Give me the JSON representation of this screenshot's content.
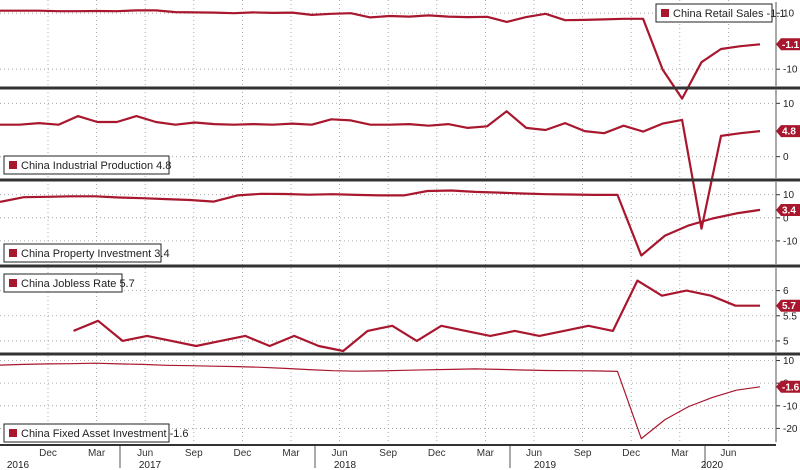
{
  "chart_data": {
    "type": "line",
    "color": "#a8172e",
    "months": [
      "Dec",
      "Mar",
      "Jun",
      "Sep",
      "Dec",
      "Mar",
      "Jun",
      "Sep",
      "Dec",
      "Mar",
      "Jun",
      "Sep",
      "Dec",
      "Mar",
      "Jun"
    ],
    "years": [
      "2016",
      "2017",
      "2018",
      "2019",
      "2020"
    ],
    "panels": [
      {
        "legend": "China Retail Sales -1.1",
        "badge": "-1.1",
        "last": -1.1,
        "ylim": [
          -16,
          14
        ],
        "ticks": [
          10,
          -10
        ],
        "values": [
          10.9,
          10.9,
          10.9,
          10.7,
          10.7,
          10.8,
          10.7,
          11.0,
          11.0,
          10.4,
          10.3,
          10.2,
          10.0,
          10.3,
          10.1,
          10.2,
          9.4,
          9.8,
          10.0,
          8.5,
          9.0,
          8.8,
          9.2,
          8.8,
          8.6,
          8.7,
          6.9,
          8.6,
          9.8,
          7.5,
          7.6,
          7.8,
          8.0,
          8.0,
          -10.1,
          -20.5,
          -7.5,
          -2.8,
          -1.8,
          -1.1
        ]
      },
      {
        "legend": "China Industrial Production 4.8",
        "badge": "4.8",
        "last": 4.8,
        "ylim": [
          -4,
          12.5
        ],
        "ticks": [
          0,
          10
        ],
        "values": [
          6.0,
          6.0,
          6.3,
          6.0,
          7.6,
          6.5,
          6.5,
          7.6,
          6.5,
          6.0,
          6.4,
          6.1,
          6.0,
          6.1,
          6.0,
          6.2,
          6.0,
          7.0,
          6.8,
          6.0,
          6.0,
          6.1,
          5.8,
          6.1,
          5.4,
          5.7,
          8.5,
          5.4,
          5.0,
          6.3,
          4.8,
          4.4,
          5.8,
          4.7,
          6.2,
          6.9,
          -13.5,
          3.9,
          4.4,
          4.8
        ]
      },
      {
        "legend": "China Property Investment 3.4",
        "badge": "3.4",
        "last": 3.4,
        "ylim": [
          -20,
          15.5
        ],
        "ticks": [
          10,
          0,
          -10
        ],
        "values": [
          6.9,
          8.9,
          9.1,
          9.3,
          9.3,
          8.8,
          8.5,
          8.1,
          7.7,
          7.0,
          9.7,
          10.4,
          10.3,
          10.0,
          10.2,
          9.9,
          9.7,
          9.7,
          11.6,
          11.8,
          11.2,
          10.9,
          10.5,
          10.2,
          10.1,
          9.9,
          9.9,
          -16.3,
          -7.7,
          -3.3,
          -0.3,
          1.9,
          3.4
        ]
      },
      {
        "legend": "China Jobless Rate 5.7",
        "badge": "5.7",
        "last": 5.7,
        "ylim": [
          4.78,
          6.45
        ],
        "ticks": [
          6.0,
          5.5,
          5.0
        ],
        "start_index": 3,
        "values": [
          5.2,
          5.4,
          5.0,
          5.1,
          5.0,
          4.9,
          5.0,
          5.1,
          4.9,
          5.1,
          4.9,
          4.8,
          5.2,
          5.3,
          5.0,
          5.3,
          5.2,
          5.1,
          5.2,
          5.1,
          5.2,
          5.3,
          5.2,
          6.2,
          5.9,
          6.0,
          5.9,
          5.7,
          5.7
        ]
      },
      {
        "legend": "China Fixed Asset Investment -1.6",
        "badge": "-1.6",
        "last": -1.6,
        "ylim": [
          -26,
          12
        ],
        "ticks": [
          10,
          0,
          -10,
          -20
        ],
        "values": [
          8.0,
          8.3,
          8.5,
          8.6,
          8.8,
          8.5,
          8.3,
          7.9,
          7.7,
          7.5,
          7.3,
          7.0,
          6.5,
          6.0,
          5.5,
          5.3,
          5.4,
          5.7,
          5.9,
          6.1,
          6.3,
          6.1,
          5.8,
          5.6,
          5.5,
          5.4,
          5.2,
          -24.5,
          -16.1,
          -10.3,
          -6.3,
          -3.1,
          -1.6
        ]
      }
    ]
  }
}
